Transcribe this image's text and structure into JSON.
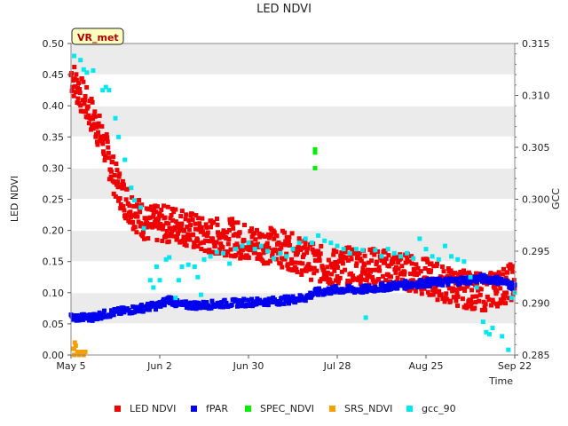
{
  "chart_data": {
    "type": "scatter",
    "title": "LED NDVI",
    "xlabel": "Time",
    "ylabel_left": "LED NDVI",
    "ylabel_right": "GCC",
    "site_badge": "VR_met",
    "x_range_days": [
      0,
      140
    ],
    "ylim_left": [
      0.0,
      0.5
    ],
    "ylim_right": [
      0.285,
      0.315
    ],
    "x_ticks": [
      {
        "day": 0,
        "label": "May 5"
      },
      {
        "day": 28,
        "label": "Jun 2"
      },
      {
        "day": 56,
        "label": "Jun 30"
      },
      {
        "day": 84,
        "label": "Jul 28"
      },
      {
        "day": 112,
        "label": "Aug 25"
      },
      {
        "day": 140,
        "label": "Sep 22"
      }
    ],
    "y_ticks_left": [
      "0.00",
      "0.05",
      "0.10",
      "0.15",
      "0.20",
      "0.25",
      "0.30",
      "0.35",
      "0.40",
      "0.45",
      "0.50"
    ],
    "y_ticks_right": [
      "0.285",
      "0.290",
      "0.295",
      "0.300",
      "0.305",
      "0.310",
      "0.315"
    ],
    "band_color": "#ebebeb",
    "series": [
      {
        "name": "LED NDVI",
        "color": "#ee0000",
        "axis": "left",
        "spread": 0.03,
        "anchors": [
          [
            0,
            0.45
          ],
          [
            3,
            0.42
          ],
          [
            5,
            0.4
          ],
          [
            8,
            0.37
          ],
          [
            11,
            0.33
          ],
          [
            14,
            0.28
          ],
          [
            17,
            0.25
          ],
          [
            20,
            0.23
          ],
          [
            24,
            0.21
          ],
          [
            28,
            0.21
          ],
          [
            34,
            0.21
          ],
          [
            42,
            0.19
          ],
          [
            50,
            0.19
          ],
          [
            56,
            0.18
          ],
          [
            64,
            0.175
          ],
          [
            70,
            0.165
          ],
          [
            76,
            0.15
          ],
          [
            82,
            0.14
          ],
          [
            90,
            0.145
          ],
          [
            98,
            0.14
          ],
          [
            105,
            0.135
          ],
          [
            112,
            0.125
          ],
          [
            120,
            0.11
          ],
          [
            130,
            0.1
          ],
          [
            136,
            0.11
          ],
          [
            140,
            0.12
          ]
        ],
        "values_note": "dense point cloud, trend shown by anchors"
      },
      {
        "name": "fPAR",
        "color": "#0000ee",
        "axis": "left",
        "spread": 0.006,
        "anchors": [
          [
            0,
            0.06
          ],
          [
            6,
            0.06
          ],
          [
            10,
            0.065
          ],
          [
            16,
            0.07
          ],
          [
            22,
            0.075
          ],
          [
            28,
            0.08
          ],
          [
            31,
            0.09
          ],
          [
            34,
            0.08
          ],
          [
            42,
            0.08
          ],
          [
            50,
            0.083
          ],
          [
            58,
            0.085
          ],
          [
            66,
            0.087
          ],
          [
            74,
            0.092
          ],
          [
            77,
            0.1
          ],
          [
            84,
            0.105
          ],
          [
            92,
            0.105
          ],
          [
            100,
            0.11
          ],
          [
            110,
            0.115
          ],
          [
            120,
            0.118
          ],
          [
            130,
            0.123
          ],
          [
            135,
            0.12
          ],
          [
            140,
            0.11
          ]
        ]
      },
      {
        "name": "SPEC_NDVI",
        "color": "#00ee00",
        "axis": "left",
        "points": [
          [
            77,
            0.33
          ],
          [
            77,
            0.325
          ],
          [
            77,
            0.3
          ]
        ]
      },
      {
        "name": "SRS_NDVI",
        "color": "#f5a000",
        "axis": "left",
        "points": [
          [
            1,
            0.0
          ],
          [
            1,
            0.01
          ],
          [
            1.5,
            0.015
          ],
          [
            2,
            0.005
          ],
          [
            2.5,
            0.0
          ],
          [
            3,
            0.005
          ],
          [
            3.5,
            0.005
          ],
          [
            4,
            0.0
          ],
          [
            4.5,
            0.005
          ],
          [
            0.8,
            0.01
          ],
          [
            1.2,
            0.02
          ]
        ]
      },
      {
        "name": "gcc_90",
        "color": "#00e8ee",
        "axis": "right",
        "points": [
          [
            1,
            0.3138
          ],
          [
            3,
            0.3134
          ],
          [
            4,
            0.3125
          ],
          [
            5,
            0.3122
          ],
          [
            7,
            0.3124
          ],
          [
            10,
            0.3105
          ],
          [
            11,
            0.3108
          ],
          [
            12,
            0.3105
          ],
          [
            14,
            0.3078
          ],
          [
            15,
            0.306
          ],
          [
            17,
            0.3038
          ],
          [
            19,
            0.3011
          ],
          [
            20,
            0.2999
          ],
          [
            22,
            0.2992
          ],
          [
            23,
            0.2972
          ],
          [
            25,
            0.2922
          ],
          [
            26,
            0.2915
          ],
          [
            27,
            0.2935
          ],
          [
            28,
            0.2922
          ],
          [
            30,
            0.2942
          ],
          [
            31,
            0.2944
          ],
          [
            33,
            0.2905
          ],
          [
            34,
            0.2922
          ],
          [
            35,
            0.2935
          ],
          [
            37,
            0.2937
          ],
          [
            39,
            0.2935
          ],
          [
            40,
            0.2925
          ],
          [
            41,
            0.2908
          ],
          [
            42,
            0.2942
          ],
          [
            44,
            0.2945
          ],
          [
            46,
            0.2949
          ],
          [
            48,
            0.2948
          ],
          [
            50,
            0.2938
          ],
          [
            52,
            0.2952
          ],
          [
            54,
            0.2955
          ],
          [
            56,
            0.2958
          ],
          [
            58,
            0.2952
          ],
          [
            60,
            0.2955
          ],
          [
            62,
            0.295
          ],
          [
            64,
            0.2943
          ],
          [
            66,
            0.2948
          ],
          [
            68,
            0.2945
          ],
          [
            70,
            0.2952
          ],
          [
            72,
            0.2958
          ],
          [
            74,
            0.2962
          ],
          [
            76,
            0.2958
          ],
          [
            78,
            0.2965
          ],
          [
            80,
            0.296
          ],
          [
            82,
            0.2958
          ],
          [
            84,
            0.2955
          ],
          [
            86,
            0.2952
          ],
          [
            88,
            0.2948
          ],
          [
            90,
            0.2952
          ],
          [
            92,
            0.2951
          ],
          [
            93,
            0.2886
          ],
          [
            96,
            0.2951
          ],
          [
            98,
            0.2945
          ],
          [
            100,
            0.2952
          ],
          [
            102,
            0.2948
          ],
          [
            104,
            0.2945
          ],
          [
            106,
            0.2948
          ],
          [
            108,
            0.2943
          ],
          [
            110,
            0.2962
          ],
          [
            112,
            0.2952
          ],
          [
            114,
            0.2945
          ],
          [
            116,
            0.2942
          ],
          [
            118,
            0.2955
          ],
          [
            120,
            0.2945
          ],
          [
            122,
            0.2942
          ],
          [
            124,
            0.294
          ],
          [
            126,
            0.2925
          ],
          [
            128,
            0.2915
          ],
          [
            130,
            0.2882
          ],
          [
            131,
            0.2872
          ],
          [
            132,
            0.287
          ],
          [
            133,
            0.2876
          ],
          [
            136,
            0.2868
          ],
          [
            138,
            0.2855
          ],
          [
            139,
            0.2905
          ],
          [
            140,
            0.291
          ]
        ]
      }
    ],
    "legend": [
      "LED NDVI",
      "fPAR",
      "SPEC_NDVI",
      "SRS_NDVI",
      "gcc_90"
    ]
  }
}
